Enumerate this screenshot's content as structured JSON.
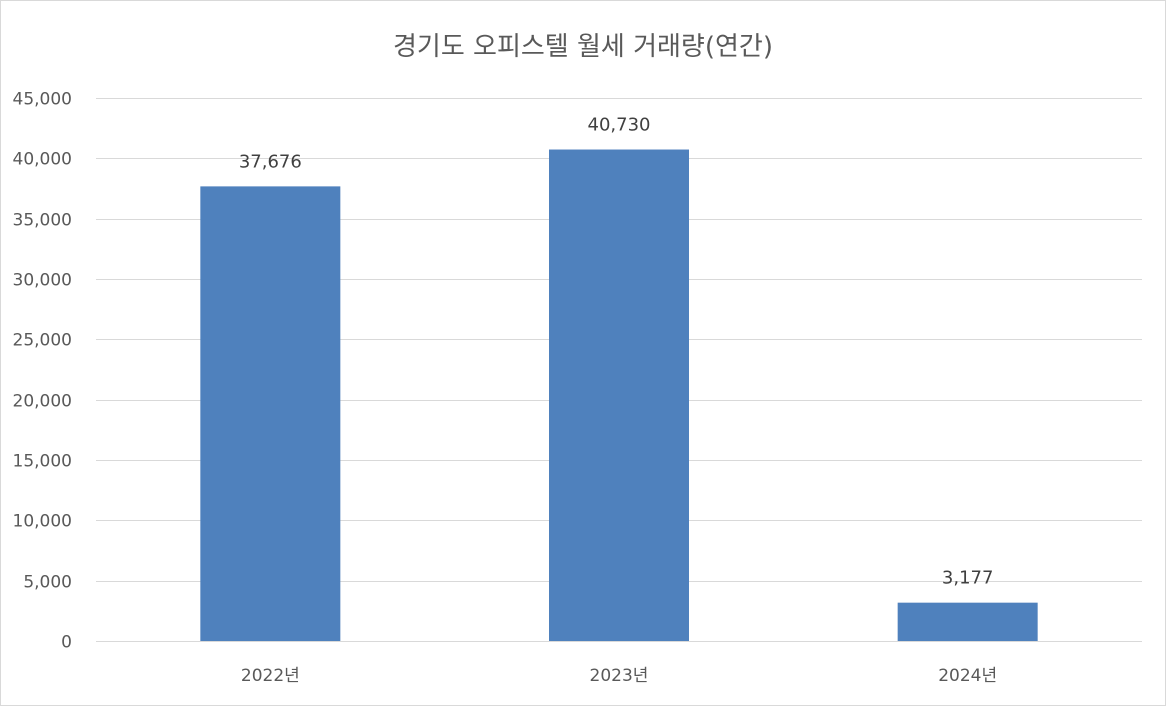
{
  "chart_data": {
    "type": "bar",
    "title": "경기도 오피스텔 월세 거래량(연간)",
    "categories": [
      "2022년",
      "2023년",
      "2024년"
    ],
    "values": [
      37676,
      40730,
      3177
    ],
    "value_labels": [
      "37,676",
      "40,730",
      "3,177"
    ],
    "ylim": [
      0,
      45000
    ],
    "yticks": [
      0,
      5000,
      10000,
      15000,
      20000,
      25000,
      30000,
      35000,
      40000,
      45000
    ],
    "ytick_labels": [
      "0",
      "5,000",
      "10,000",
      "15,000",
      "20,000",
      "25,000",
      "30,000",
      "35,000",
      "40,000",
      "45,000"
    ],
    "xlabel": "",
    "ylabel": "",
    "grid": true,
    "legend": "none",
    "colors": {
      "bar": "#4f81bd",
      "grid": "#d9d9d9",
      "text": "#595959"
    }
  }
}
